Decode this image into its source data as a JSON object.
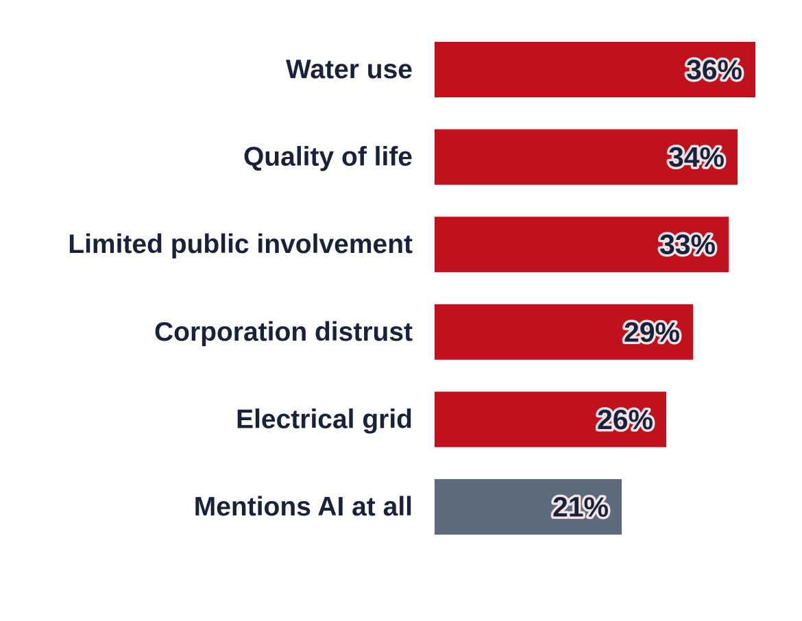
{
  "chart_data": {
    "type": "bar",
    "orientation": "horizontal",
    "categories": [
      "Water use",
      "Quality of life",
      "Limited public involvement",
      "Corporation distrust",
      "Electrical grid",
      "Mentions AI at all"
    ],
    "values": [
      36,
      34,
      33,
      29,
      26,
      21
    ],
    "value_labels": [
      "36%",
      "34%",
      "33%",
      "29%",
      "26%",
      "21%"
    ],
    "bar_colors": [
      "#c0111f",
      "#c0111f",
      "#c0111f",
      "#c0111f",
      "#c0111f",
      "#5e6b7d"
    ],
    "xlim": [
      0,
      36
    ],
    "grid": false,
    "legend": "none",
    "title": "",
    "xlabel": "",
    "ylabel": ""
  },
  "colors": {
    "accent": "#c0111f",
    "muted": "#5e6b7d",
    "text": "#18233a",
    "label_halo": "#f2e4e6"
  }
}
